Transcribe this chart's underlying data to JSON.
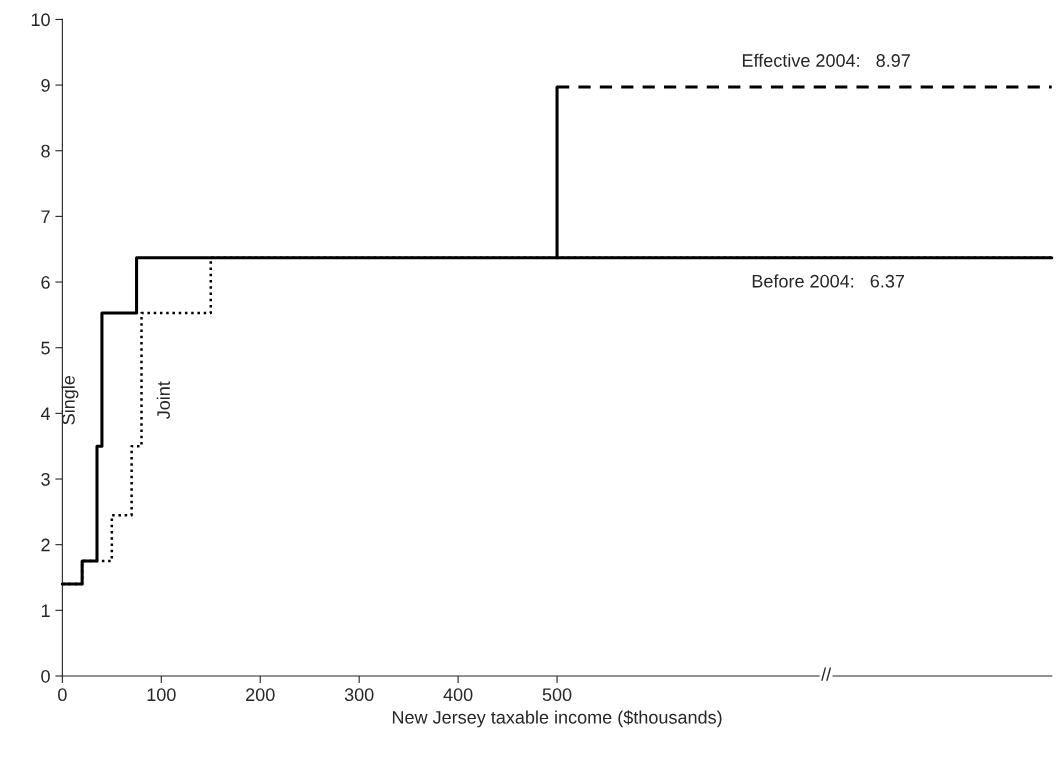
{
  "chart_data": {
    "type": "step",
    "xlabel": "New Jersey taxable income ($thousands)",
    "xlim": [
      0,
      1000
    ],
    "xticks": [
      0,
      100,
      200,
      300,
      400,
      500
    ],
    "ylim": [
      0,
      10
    ],
    "yticks": [
      0,
      1,
      2,
      3,
      4,
      5,
      6,
      7,
      8,
      9,
      10
    ],
    "grid": false,
    "legend": false,
    "series": [
      {
        "color": "#000000",
        "line_style": "dotted",
        "x": [
          0,
          20,
          50,
          70,
          80,
          150,
          1000
        ],
        "values": [
          1.4,
          1.75,
          2.45,
          3.5,
          5.53,
          6.37,
          6.37
        ]
      },
      {
        "color": "#000000",
        "line_style": "solid",
        "x": [
          0,
          20,
          35,
          40,
          75,
          1000
        ],
        "values": [
          1.4,
          1.75,
          3.5,
          5.53,
          6.37,
          6.37
        ]
      },
      {
        "color": "#000000",
        "line_style": "solid",
        "x": [
          500,
          500
        ],
        "values": [
          6.37,
          8.97
        ]
      },
      {
        "color": "#000000",
        "line_style": "dashed",
        "x": [
          500,
          1000
        ],
        "values": [
          8.97,
          8.97
        ]
      }
    ],
    "annotations": [
      {
        "text": "Single",
        "x": 40,
        "y": 4.2
      },
      {
        "text": "Joint",
        "x": 80,
        "y": 4.2
      },
      {
        "text": "Effective 2004:   8.97",
        "x": 772,
        "y": 8.97
      },
      {
        "text": "Before 2004:   6.37",
        "x": 774,
        "y": 6.37
      },
      {
        "text": "//",
        "x": 772,
        "y": 0
      }
    ]
  }
}
